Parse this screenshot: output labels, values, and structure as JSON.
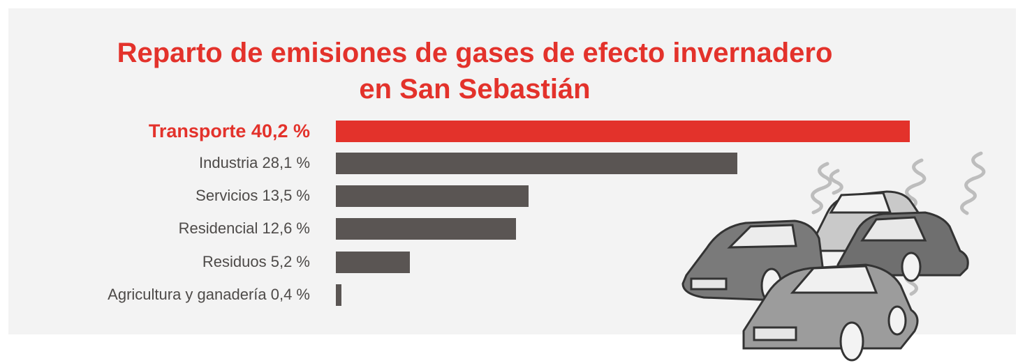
{
  "title_lines": [
    "Reparto de emisiones de gases de efecto invernadero",
    "en San Sebastián"
  ],
  "colors": {
    "highlight": "#e3322b",
    "bar": "#5a5553",
    "label": "#4d4a48",
    "background": "#f3f3f3"
  },
  "illustration": "cars-with-exhaust-smoke",
  "chart_data": {
    "type": "bar",
    "orientation": "horizontal",
    "title": "Reparto de emisiones de gases de efecto invernadero en San Sebastián",
    "unit": "%",
    "categories": [
      "Transporte",
      "Industria",
      "Servicios",
      "Residencial",
      "Residuos",
      "Agricultura y ganadería"
    ],
    "values": [
      40.2,
      28.1,
      13.5,
      12.6,
      5.2,
      0.4
    ],
    "labels": [
      "Transporte 40,2 %",
      "Industria 28,1  %",
      "Servicios 13,5  %",
      "Residencial 12,6  %",
      "Residuos 5,2  %",
      "Agricultura y ganadería 0,4  %"
    ],
    "highlighted_category": "Transporte",
    "xlim": [
      0,
      40.2
    ],
    "grid": false,
    "legend": "none"
  }
}
